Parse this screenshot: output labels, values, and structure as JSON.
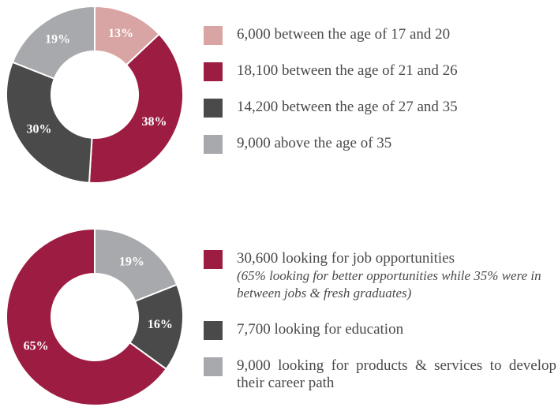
{
  "chart_data": [
    {
      "type": "pie",
      "donut": true,
      "direction": "clockwise",
      "categories": [
        "6,000 between the age of 17 and 20",
        "18,100 between the age of 21 and 26",
        "14,200 between the age of 27 and 35",
        "9,000 above the age of 35"
      ],
      "values": [
        13,
        38,
        30,
        19
      ],
      "value_labels": [
        "13%",
        "38%",
        "30%",
        "19%"
      ],
      "colors": [
        "#d8a4a4",
        "#9c1c42",
        "#4a4a4a",
        "#a8a9ad"
      ]
    },
    {
      "type": "pie",
      "donut": true,
      "direction": "counterclockwise",
      "categories": [
        "30,600 looking for job opportunities",
        "7,700 looking for education",
        "9,000 looking for products & services to develop their career path"
      ],
      "values": [
        65,
        16,
        19
      ],
      "value_labels": [
        "65%",
        "16%",
        "19%"
      ],
      "colors": [
        "#9c1c42",
        "#4a4a4a",
        "#a8a9ad"
      ],
      "annotation": "(65% looking for better opportunities while 35% were in between jobs & fresh graduates)"
    }
  ]
}
